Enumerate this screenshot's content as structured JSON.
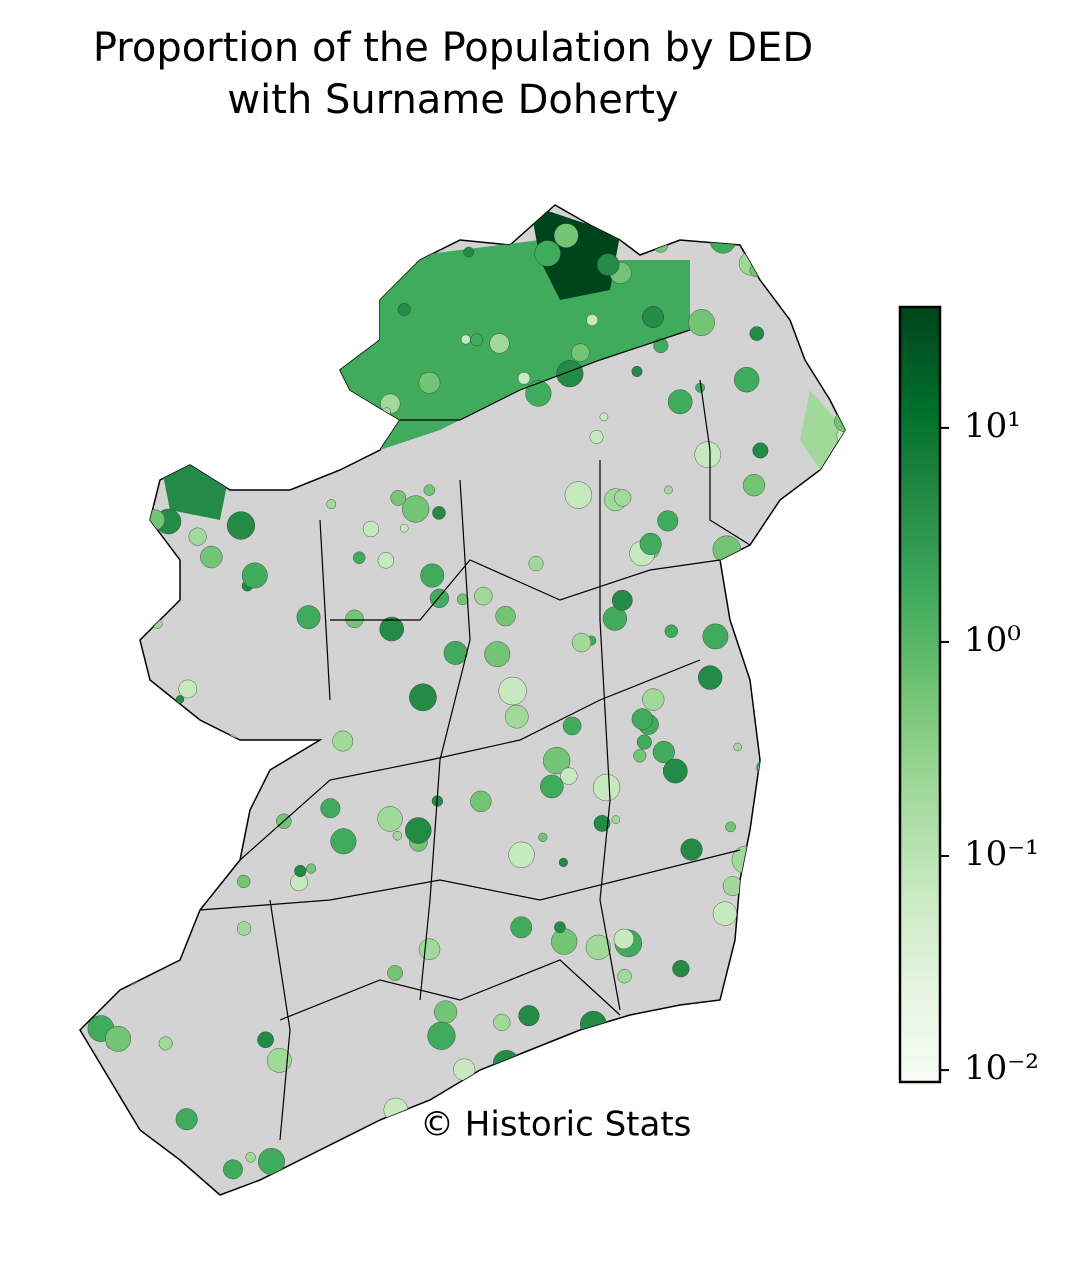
{
  "chart_data": {
    "type": "choropleth",
    "title": "Proportion of the Population by DED with Surname Doherty",
    "colorbar": {
      "scale": "log",
      "lim": [
        0.0088,
        36.7
      ],
      "ticks": [
        {
          "value": 0.01,
          "label": "10⁻²"
        },
        {
          "value": 0.1,
          "label": "10⁻¹"
        },
        {
          "value": 1,
          "label": "10⁰"
        },
        {
          "value": 10,
          "label": "10¹"
        }
      ],
      "colors": [
        "#f7fcf5",
        "#e5f5e0",
        "#c7e9c0",
        "#a1d99b",
        "#74c476",
        "#41ab5d",
        "#238b45",
        "#006d2c",
        "#00441b"
      ]
    },
    "annotation": "© Historic Stats"
  }
}
